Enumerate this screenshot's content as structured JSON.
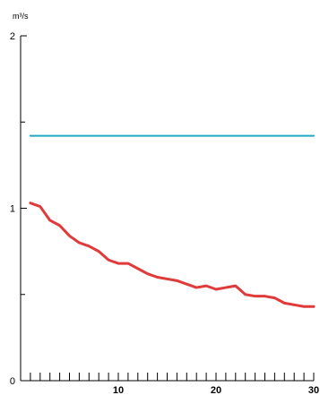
{
  "chart_data": {
    "type": "line",
    "title": "",
    "xlabel": "",
    "ylabel": "m³/s",
    "xlim": [
      0,
      30
    ],
    "ylim": [
      0,
      2
    ],
    "grid": false,
    "x_ticks_minor_step": 1,
    "x_tick_labels": [
      "10",
      "20",
      "30"
    ],
    "y_tick_labels": [
      "0",
      "1",
      "2"
    ],
    "series": [
      {
        "color": "#e03a3a",
        "x": [
          1,
          2,
          3,
          4,
          5,
          6,
          7,
          8,
          9,
          10,
          11,
          12,
          13,
          14,
          15,
          16,
          17,
          18,
          19,
          20,
          21,
          22,
          23,
          24,
          25,
          26,
          27,
          28,
          29,
          30
        ],
        "values": [
          1.03,
          1.01,
          0.93,
          0.9,
          0.84,
          0.8,
          0.78,
          0.75,
          0.7,
          0.68,
          0.68,
          0.65,
          0.62,
          0.6,
          0.59,
          0.58,
          0.56,
          0.54,
          0.55,
          0.53,
          0.54,
          0.55,
          0.5,
          0.49,
          0.49,
          0.48,
          0.45,
          0.44,
          0.43,
          0.43
        ]
      },
      {
        "color": "#1fa7c4",
        "x": [
          1,
          30
        ],
        "values": [
          1.42,
          1.42
        ]
      }
    ]
  }
}
